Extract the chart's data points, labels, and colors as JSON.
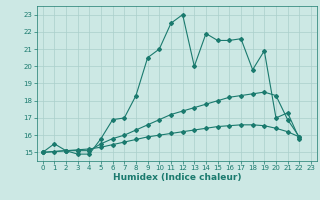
{
  "xlabel": "Humidex (Indice chaleur)",
  "bg_color": "#cce8e4",
  "line_color": "#1a7a6e",
  "grid_color": "#aacfcb",
  "xlim": [
    -0.5,
    23.5
  ],
  "ylim": [
    14.5,
    23.5
  ],
  "yticks": [
    15,
    16,
    17,
    18,
    19,
    20,
    21,
    22,
    23
  ],
  "xticks": [
    0,
    1,
    2,
    3,
    4,
    5,
    6,
    7,
    8,
    9,
    10,
    11,
    12,
    13,
    14,
    15,
    16,
    17,
    18,
    19,
    20,
    21,
    22,
    23
  ],
  "line1_x": [
    0,
    1,
    2,
    3,
    4,
    5,
    6,
    7,
    8,
    9,
    10,
    11,
    12,
    13,
    14,
    15,
    16,
    17,
    18,
    19,
    20,
    21,
    22
  ],
  "line1_y": [
    15.0,
    15.5,
    15.1,
    14.9,
    14.9,
    15.8,
    16.9,
    17.0,
    18.3,
    20.5,
    21.0,
    22.5,
    23.0,
    20.0,
    21.9,
    21.5,
    21.5,
    21.6,
    19.8,
    20.9,
    17.0,
    17.3,
    15.8
  ],
  "line2_x": [
    0,
    2,
    3,
    4,
    5,
    6,
    7,
    8,
    9,
    10,
    11,
    12,
    13,
    14,
    15,
    16,
    17,
    18,
    19,
    20,
    21,
    22
  ],
  "line2_y": [
    15.0,
    15.1,
    15.1,
    15.1,
    15.5,
    15.8,
    16.0,
    16.3,
    16.6,
    16.9,
    17.2,
    17.4,
    17.6,
    17.8,
    18.0,
    18.2,
    18.3,
    18.4,
    18.5,
    18.3,
    16.9,
    15.9
  ],
  "line3_x": [
    0,
    1,
    2,
    3,
    4,
    5,
    6,
    7,
    8,
    9,
    10,
    11,
    12,
    13,
    14,
    15,
    16,
    17,
    18,
    19,
    20,
    21,
    22
  ],
  "line3_y": [
    15.0,
    15.05,
    15.1,
    15.15,
    15.2,
    15.3,
    15.45,
    15.6,
    15.75,
    15.9,
    16.0,
    16.1,
    16.2,
    16.3,
    16.4,
    16.5,
    16.55,
    16.6,
    16.6,
    16.55,
    16.4,
    16.2,
    15.9
  ],
  "marker": "D",
  "markersize": 2.0,
  "linewidth": 0.8,
  "tick_fontsize": 5.0,
  "xlabel_fontsize": 6.5
}
